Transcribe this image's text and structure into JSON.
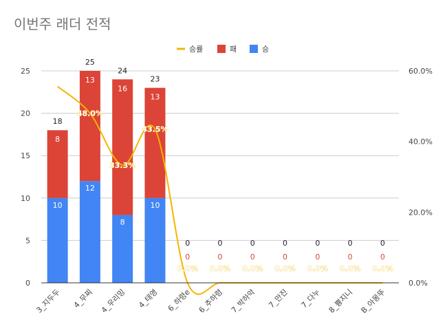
{
  "chart_data": {
    "type": "bar",
    "stacked": true,
    "title": "이번주 래더 전적",
    "categories": [
      "3_지두두",
      "4_무찌",
      "4_우리밍",
      "4_태영",
      "6_하령e",
      "6_추하령",
      "7_박하악",
      "7_만진",
      "7_다누",
      "8_쁑지니",
      "B_아몽뚜"
    ],
    "series": [
      {
        "name": "승",
        "type": "bar",
        "color": "#4285f4",
        "values": [
          10,
          12,
          8,
          10,
          0,
          0,
          0,
          0,
          0,
          0,
          0
        ]
      },
      {
        "name": "패",
        "type": "bar",
        "color": "#db4437",
        "values": [
          8,
          13,
          16,
          13,
          0,
          0,
          0,
          0,
          0,
          0,
          0
        ]
      },
      {
        "name": "승률",
        "type": "line",
        "axis": "right",
        "color": "#f4b400",
        "values": [
          55.6,
          48.0,
          33.3,
          43.5,
          0,
          0,
          0,
          0,
          0,
          0,
          0
        ]
      }
    ],
    "totals": [
      18,
      25,
      24,
      23,
      0,
      0,
      0,
      0,
      0,
      0,
      0
    ],
    "rate_labels": [
      "",
      "48.0%",
      "33.3%",
      "43.5%",
      "0.0%",
      "0.0%",
      "0.0%",
      "0.0%",
      "0.0%",
      "0.0%",
      "0.0%"
    ],
    "left_axis": {
      "min": 0,
      "max": 25,
      "ticks": [
        0,
        5,
        10,
        15,
        20,
        25
      ]
    },
    "right_axis": {
      "min": 0,
      "max": 60,
      "ticks": [
        "0.0%",
        "20.0%",
        "40.0%",
        "60.0%"
      ],
      "tick_values": [
        0,
        20,
        40,
        60
      ]
    },
    "legend_position": "top",
    "grid": true
  }
}
